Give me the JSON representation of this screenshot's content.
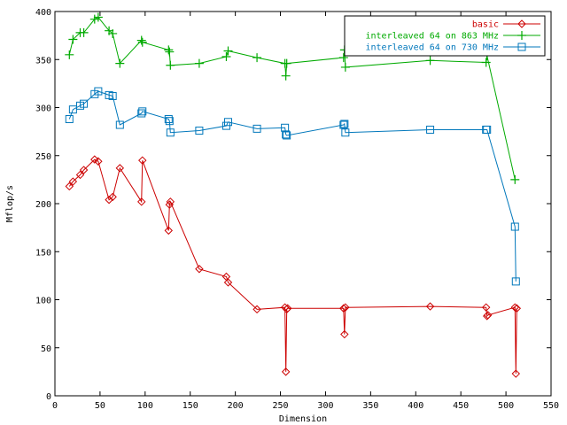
{
  "chart_data": {
    "type": "line",
    "xlabel": "Dimension",
    "ylabel": "Mflop/s",
    "xlim": [
      0,
      550
    ],
    "ylim": [
      0,
      400
    ],
    "xticks": [
      0,
      50,
      100,
      150,
      200,
      250,
      300,
      350,
      400,
      450,
      500,
      550
    ],
    "yticks": [
      0,
      50,
      100,
      150,
      200,
      250,
      300,
      350,
      400
    ],
    "grid": false,
    "legend_position": "top-right",
    "series": [
      {
        "name": "basic",
        "color": "#cc0000",
        "marker": "diamond",
        "x": [
          16,
          20,
          28,
          32,
          44,
          48,
          60,
          64,
          72,
          96,
          97,
          126,
          127,
          128,
          160,
          190,
          192,
          224,
          255,
          256,
          257,
          258,
          320,
          321,
          322,
          416,
          478,
          479,
          480,
          510,
          511,
          512
        ],
        "y": [
          218,
          223,
          230,
          235,
          246,
          244,
          204,
          207,
          237,
          202,
          245,
          172,
          199,
          202,
          132,
          124,
          118,
          90,
          92,
          25,
          90,
          91,
          91,
          64,
          92,
          93,
          92,
          83,
          84,
          92,
          23,
          91
        ]
      },
      {
        "name": "interleaved 64 on 863 MHz",
        "color": "#00aa00",
        "marker": "plus",
        "x": [
          16,
          20,
          28,
          32,
          44,
          48,
          60,
          64,
          72,
          96,
          97,
          126,
          127,
          128,
          160,
          190,
          192,
          224,
          255,
          256,
          257,
          320,
          321,
          322,
          416,
          478,
          479,
          510
        ],
        "y": [
          355,
          371,
          378,
          378,
          392,
          394,
          380,
          377,
          346,
          370,
          368,
          360,
          358,
          344,
          346,
          353,
          359,
          352,
          346,
          333,
          346,
          352,
          360,
          342,
          349,
          347,
          354,
          225
        ]
      },
      {
        "name": "interleaved 64 on 730 MHz",
        "color": "#0077bb",
        "marker": "square",
        "x": [
          16,
          20,
          28,
          32,
          44,
          48,
          60,
          64,
          72,
          96,
          97,
          126,
          127,
          128,
          160,
          190,
          192,
          224,
          255,
          256,
          257,
          320,
          321,
          322,
          416,
          478,
          479,
          510,
          511
        ],
        "y": [
          288,
          298,
          302,
          304,
          314,
          317,
          313,
          312,
          282,
          294,
          296,
          288,
          286,
          274,
          276,
          281,
          285,
          278,
          279,
          272,
          271,
          282,
          283,
          274,
          277,
          277,
          277,
          176,
          119
        ]
      }
    ]
  }
}
